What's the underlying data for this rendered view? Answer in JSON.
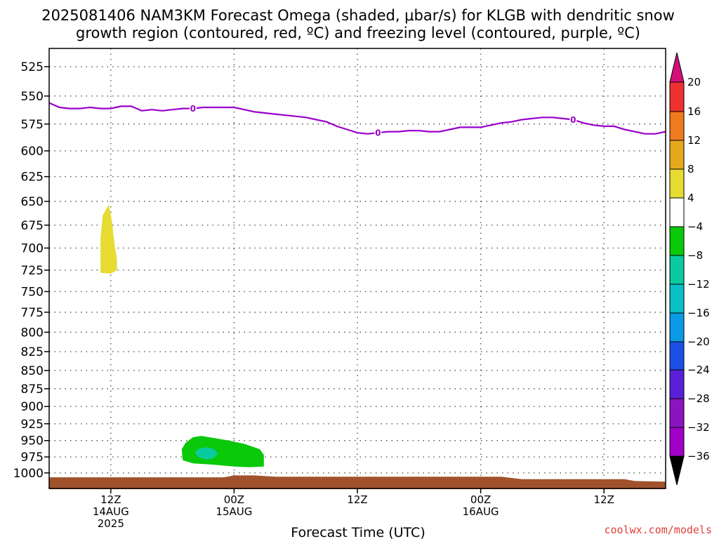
{
  "chart_data": {
    "type": "time-height",
    "title_line1": "2025081406 NAM3KM Forecast Omega (shaded, μbar/s) for KLGB with dendritic snow",
    "title_line2": "growth region (contoured, red, ºC) and freezing level (contoured, purple, ºC)",
    "xlabel": "Forecast Time (UTC)",
    "credit": "coolwx.com/models",
    "y_axis": {
      "ticks": [
        525,
        550,
        575,
        600,
        625,
        650,
        675,
        700,
        725,
        750,
        775,
        800,
        825,
        850,
        875,
        900,
        925,
        950,
        975,
        1000
      ],
      "tick_labels": [
        "525",
        "550",
        "575",
        "600",
        "625",
        "650",
        "675",
        "700",
        "725",
        "750",
        "775",
        "800",
        "825",
        "850",
        "875",
        "900",
        "925",
        "950",
        "975",
        "1000"
      ],
      "range": [
        510,
        1025
      ],
      "scale": "log-pressure"
    },
    "x_axis": {
      "range_hours": [
        6,
        66
      ],
      "ticks": [
        {
          "hour": 12,
          "lines": [
            "12Z",
            "14AUG",
            "2025"
          ]
        },
        {
          "hour": 24,
          "lines": [
            "00Z",
            "15AUG"
          ]
        },
        {
          "hour": 36,
          "lines": [
            "12Z"
          ]
        },
        {
          "hour": 48,
          "lines": [
            "00Z",
            "16AUG"
          ]
        },
        {
          "hour": 60,
          "lines": [
            "12Z"
          ]
        }
      ]
    },
    "grid": true,
    "freezing_level": {
      "color": "#9900cc",
      "contour_label": "0",
      "label_hours": [
        20,
        38,
        57
      ],
      "points": [
        [
          6,
          556
        ],
        [
          7,
          560
        ],
        [
          8,
          561
        ],
        [
          9,
          561
        ],
        [
          10,
          560
        ],
        [
          11,
          561
        ],
        [
          12,
          561
        ],
        [
          13,
          559
        ],
        [
          14,
          559
        ],
        [
          15,
          563
        ],
        [
          16,
          562
        ],
        [
          17,
          563
        ],
        [
          18,
          562
        ],
        [
          19,
          561
        ],
        [
          20,
          561
        ],
        [
          21,
          560
        ],
        [
          22,
          560
        ],
        [
          23,
          560
        ],
        [
          24,
          560
        ],
        [
          25,
          562
        ],
        [
          26,
          564
        ],
        [
          27,
          565
        ],
        [
          28,
          566
        ],
        [
          29,
          567
        ],
        [
          30,
          568
        ],
        [
          31,
          569
        ],
        [
          32,
          571
        ],
        [
          33,
          573
        ],
        [
          34,
          577
        ],
        [
          35,
          580
        ],
        [
          36,
          583
        ],
        [
          37,
          584
        ],
        [
          38,
          583
        ],
        [
          39,
          582
        ],
        [
          40,
          582
        ],
        [
          41,
          581
        ],
        [
          42,
          581
        ],
        [
          43,
          582
        ],
        [
          44,
          582
        ],
        [
          45,
          580
        ],
        [
          46,
          578
        ],
        [
          47,
          578
        ],
        [
          48,
          578
        ],
        [
          49,
          576
        ],
        [
          50,
          574
        ],
        [
          51,
          573
        ],
        [
          52,
          571
        ],
        [
          53,
          570
        ],
        [
          54,
          569
        ],
        [
          55,
          569
        ],
        [
          56,
          570
        ],
        [
          57,
          571
        ],
        [
          58,
          574
        ],
        [
          59,
          576
        ],
        [
          60,
          577
        ],
        [
          61,
          577
        ],
        [
          62,
          580
        ],
        [
          63,
          582
        ],
        [
          64,
          584
        ],
        [
          65,
          584
        ],
        [
          66,
          582
        ]
      ]
    },
    "omega_regions": [
      {
        "name": "positive 4 to 8",
        "color": "#e6dc32",
        "points": [
          [
            11.0,
            728
          ],
          [
            11.0,
            690
          ],
          [
            11.2,
            665
          ],
          [
            11.8,
            653
          ],
          [
            12.1,
            670
          ],
          [
            12.4,
            700
          ],
          [
            12.6,
            712
          ],
          [
            12.6,
            725
          ],
          [
            12.0,
            729
          ]
        ]
      },
      {
        "name": "negative -8 to -4",
        "color": "#0ac80a",
        "points": [
          [
            19.0,
            980
          ],
          [
            18.9,
            963
          ],
          [
            19.3,
            953
          ],
          [
            20.0,
            945
          ],
          [
            20.8,
            943
          ],
          [
            22.0,
            946
          ],
          [
            23.5,
            950
          ],
          [
            25.0,
            955
          ],
          [
            26.5,
            963
          ],
          [
            26.9,
            972
          ],
          [
            26.9,
            990
          ],
          [
            25.5,
            991
          ],
          [
            24.0,
            990
          ],
          [
            22.0,
            987
          ],
          [
            20.0,
            985
          ]
        ]
      },
      {
        "name": "negative -12 to -8",
        "color": "#0acaa0",
        "points": [
          [
            20.2,
            968
          ],
          [
            20.6,
            962
          ],
          [
            21.4,
            960
          ],
          [
            22.1,
            963
          ],
          [
            22.4,
            970
          ],
          [
            22.0,
            977
          ],
          [
            21.2,
            979
          ],
          [
            20.5,
            975
          ]
        ]
      }
    ],
    "terrain": {
      "color": "#a0522d",
      "points": [
        [
          6,
          1007
        ],
        [
          23,
          1007
        ],
        [
          24,
          1004
        ],
        [
          26,
          1004
        ],
        [
          28,
          1006
        ],
        [
          50,
          1006
        ],
        [
          52,
          1010
        ],
        [
          62,
          1010
        ],
        [
          63,
          1013
        ],
        [
          66,
          1014
        ]
      ]
    },
    "colorbar": {
      "labels": [
        "20",
        "16",
        "12",
        "8",
        "4",
        "−4",
        "−8",
        "−12",
        "−16",
        "−20",
        "−24",
        "−28",
        "−32",
        "−36"
      ],
      "colors": [
        "#d40e7a",
        "#ee3030",
        "#f07a1e",
        "#e6a91e",
        "#e6dc32",
        "#ffffff",
        "#0ac80a",
        "#0acaa0",
        "#0ac0c8",
        "#0a9ae6",
        "#1a50e6",
        "#5a20d8",
        "#8c14c0",
        "#a000c8",
        "#a0a0a0",
        "#000000"
      ]
    }
  }
}
